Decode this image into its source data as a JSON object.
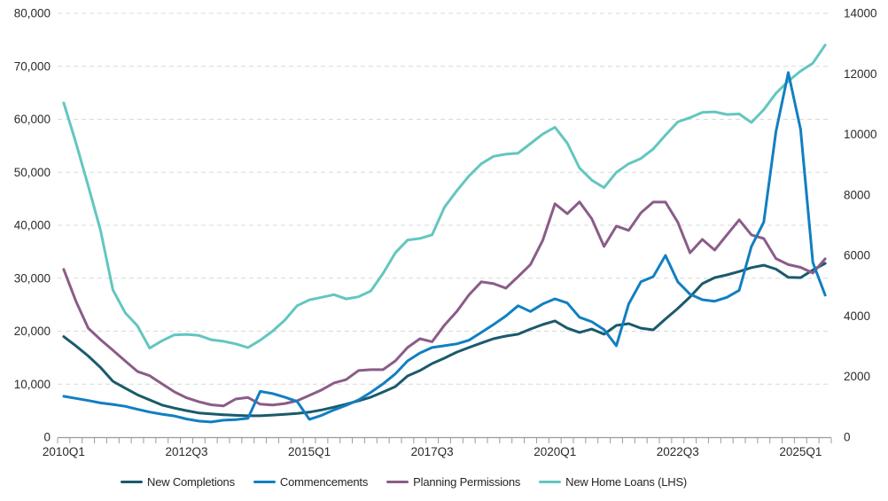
{
  "chart_data": {
    "type": "line",
    "title": "",
    "x_axis": {
      "total_points": 63,
      "unit": "quarter",
      "first_point": "2010Q1",
      "last_point": "2025Q3",
      "shown_labels": [
        {
          "index": 0,
          "text": "2010Q1"
        },
        {
          "index": 10,
          "text": "2012Q3"
        },
        {
          "index": 20,
          "text": "2015Q1"
        },
        {
          "index": 30,
          "text": "2017Q3"
        },
        {
          "index": 40,
          "text": "2020Q1"
        },
        {
          "index": 50,
          "text": "2022Q3"
        },
        {
          "index": 60,
          "text": "2025Q1"
        }
      ]
    },
    "left_axis": {
      "min": 0,
      "max": 80000,
      "step": 10000,
      "ticks": [
        "0",
        "10,000",
        "20,000",
        "30,000",
        "40,000",
        "50,000",
        "60,000",
        "70,000",
        "80,000"
      ]
    },
    "right_axis": {
      "min": 0,
      "max": 14000,
      "step": 2000,
      "ticks": [
        "0",
        "2000",
        "4000",
        "6000",
        "8000",
        "10000",
        "12000",
        "14000"
      ]
    },
    "grid_color": "#D9D9D9",
    "axis_color": "#9B9B9B",
    "text_color": "#2B2B2B",
    "series": [
      {
        "name": "New Completions",
        "color": "#1A5A6D",
        "axis": "right",
        "values": [
          3320,
          3010,
          2680,
          2300,
          1845,
          1620,
          1400,
          1230,
          1060,
          960,
          875,
          800,
          770,
          740,
          720,
          705,
          705,
          730,
          755,
          785,
          825,
          900,
          990,
          1090,
          1200,
          1320,
          1490,
          1670,
          2020,
          2200,
          2430,
          2610,
          2810,
          2960,
          3110,
          3250,
          3340,
          3400,
          3570,
          3720,
          3840,
          3600,
          3460,
          3570,
          3400,
          3690,
          3750,
          3600,
          3545,
          3900,
          4250,
          4630,
          5070,
          5270,
          5360,
          5470,
          5600,
          5680,
          5550,
          5280,
          5270,
          5520,
          5740
        ]
      },
      {
        "name": "Commencements",
        "color": "#117FC2",
        "axis": "right",
        "values": [
          1350,
          1280,
          1210,
          1130,
          1080,
          1020,
          920,
          830,
          760,
          700,
          600,
          530,
          500,
          560,
          580,
          620,
          1510,
          1440,
          1320,
          1180,
          590,
          720,
          900,
          1050,
          1230,
          1480,
          1760,
          2090,
          2520,
          2780,
          2960,
          3020,
          3080,
          3200,
          3460,
          3720,
          4000,
          4340,
          4150,
          4400,
          4570,
          4430,
          3960,
          3810,
          3550,
          3020,
          4400,
          5130,
          5300,
          6000,
          5130,
          4720,
          4540,
          4490,
          4620,
          4850,
          6300,
          7100,
          10100,
          12040,
          10160,
          5770,
          4690
        ]
      },
      {
        "name": "Planning Permissions",
        "color": "#8B5C88",
        "axis": "right",
        "values": [
          5540,
          4480,
          3600,
          3220,
          2870,
          2520,
          2170,
          2030,
          1760,
          1500,
          1300,
          1170,
          1070,
          1030,
          1260,
          1310,
          1090,
          1060,
          1110,
          1200,
          1380,
          1560,
          1790,
          1900,
          2200,
          2230,
          2230,
          2520,
          2960,
          3250,
          3150,
          3700,
          4150,
          4700,
          5130,
          5070,
          4920,
          5300,
          5700,
          6500,
          7710,
          7380,
          7770,
          7210,
          6300,
          6970,
          6830,
          7410,
          7765,
          7765,
          7100,
          6090,
          6530,
          6180,
          6680,
          7180,
          6680,
          6560,
          5900,
          5700,
          5610,
          5420,
          5890
        ]
      },
      {
        "name": "New Home Loans (LHS)",
        "color": "#63C6C0",
        "axis": "left",
        "values": [
          63100,
          55500,
          47400,
          39000,
          27800,
          23500,
          21000,
          16800,
          18200,
          19300,
          19400,
          19200,
          18400,
          18100,
          17600,
          16900,
          18300,
          20000,
          22100,
          24800,
          25900,
          26400,
          26900,
          26100,
          26500,
          27600,
          30900,
          34800,
          37200,
          37500,
          38200,
          43400,
          46500,
          49300,
          51600,
          53000,
          53400,
          53600,
          55400,
          57200,
          58500,
          55500,
          50800,
          48500,
          47100,
          50000,
          51600,
          52600,
          54400,
          57000,
          59500,
          60300,
          61300,
          61400,
          60900,
          61000,
          59400,
          61800,
          64900,
          67200,
          69100,
          70600,
          74000
        ]
      }
    ],
    "legend_position": "bottom"
  }
}
